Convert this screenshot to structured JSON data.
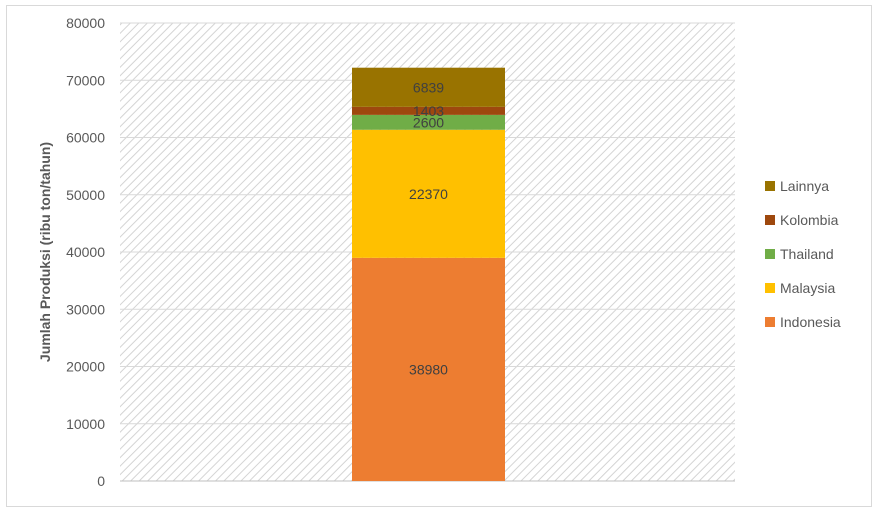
{
  "chart_data": {
    "type": "bar",
    "stacked": true,
    "categories": [
      ""
    ],
    "series": [
      {
        "name": "Indonesia",
        "values": [
          38980
        ],
        "color": "#ED7D31"
      },
      {
        "name": "Malaysia",
        "values": [
          22370
        ],
        "color": "#FFC000"
      },
      {
        "name": "Thailand",
        "values": [
          2600
        ],
        "color": "#70AD47"
      },
      {
        "name": "Kolombia",
        "values": [
          1403
        ],
        "color": "#9E480E"
      },
      {
        "name": "Lainnya",
        "values": [
          6839
        ],
        "color": "#997300"
      }
    ],
    "title": "",
    "xlabel": "",
    "ylabel": "Jumlah Produksi (ribu ton/tahun)",
    "ylim": [
      0,
      80000
    ],
    "yticks": [
      0,
      10000,
      20000,
      30000,
      40000,
      50000,
      60000,
      70000,
      80000
    ],
    "grid": true,
    "legend_position": "right",
    "data_labels": true
  }
}
